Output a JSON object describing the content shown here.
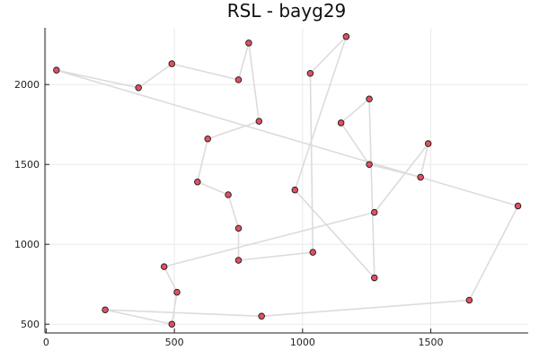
{
  "chart_data": {
    "type": "scatter",
    "title": "RSL - bayg29",
    "xlabel": "",
    "ylabel": "",
    "xlim": [
      -5,
      1880
    ],
    "ylim": [
      445,
      2355
    ],
    "x_ticks": [
      0,
      500,
      1000,
      1500
    ],
    "y_ticks": [
      500,
      1000,
      1500,
      2000
    ],
    "x_tick_labels": [
      "0",
      "500",
      "1000",
      "1500"
    ],
    "y_tick_labels": [
      "500",
      "1000",
      "1500",
      "2000"
    ],
    "grid": true,
    "legend": "none",
    "colors": {
      "point": "#e0505f",
      "route": "#dcdcdc",
      "axis": "#222222",
      "grid": "#e9e9e9"
    },
    "route": [
      {
        "x": 40,
        "y": 2090
      },
      {
        "x": 1840,
        "y": 1240
      },
      {
        "x": 1650,
        "y": 650
      },
      {
        "x": 840,
        "y": 550
      },
      {
        "x": 230,
        "y": 590
      },
      {
        "x": 490,
        "y": 500
      },
      {
        "x": 510,
        "y": 700
      },
      {
        "x": 460,
        "y": 860
      },
      {
        "x": 1280,
        "y": 1200
      },
      {
        "x": 1490,
        "y": 1630
      },
      {
        "x": 1460,
        "y": 1420
      },
      {
        "x": 1260,
        "y": 1500
      },
      {
        "x": 1150,
        "y": 1760
      },
      {
        "x": 1260,
        "y": 1910
      },
      {
        "x": 1280,
        "y": 790
      },
      {
        "x": 970,
        "y": 1340
      },
      {
        "x": 1170,
        "y": 2300
      },
      {
        "x": 1030,
        "y": 2070
      },
      {
        "x": 1040,
        "y": 950
      },
      {
        "x": 750,
        "y": 900
      },
      {
        "x": 750,
        "y": 1100
      },
      {
        "x": 710,
        "y": 1310
      },
      {
        "x": 590,
        "y": 1390
      },
      {
        "x": 630,
        "y": 1660
      },
      {
        "x": 830,
        "y": 1770
      },
      {
        "x": 790,
        "y": 2260
      },
      {
        "x": 750,
        "y": 2030
      },
      {
        "x": 490,
        "y": 2130
      },
      {
        "x": 360,
        "y": 1980
      }
    ]
  }
}
